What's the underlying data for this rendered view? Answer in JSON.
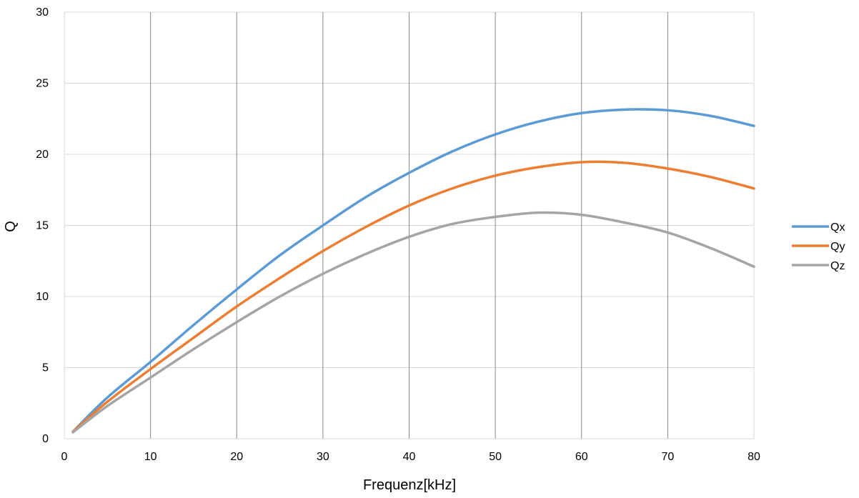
{
  "chart_data": {
    "type": "line",
    "title": "",
    "xlabel": "Frequenz[kHz]",
    "ylabel": "Q",
    "xlim": [
      0,
      80
    ],
    "ylim": [
      0,
      30
    ],
    "x_ticks": [
      0,
      10,
      20,
      30,
      40,
      50,
      60,
      70,
      80
    ],
    "y_ticks": [
      0,
      5,
      10,
      15,
      20,
      25,
      30
    ],
    "grid": "on",
    "legend_position": "right",
    "x": [
      1,
      5,
      10,
      15,
      20,
      25,
      30,
      35,
      40,
      45,
      50,
      55,
      60,
      65,
      70,
      75,
      80
    ],
    "series": [
      {
        "name": "Qx",
        "color": "#5b9bd5",
        "values": [
          0.5,
          2.9,
          5.4,
          8.0,
          10.5,
          12.9,
          15.0,
          17.0,
          18.7,
          20.2,
          21.4,
          22.3,
          22.9,
          23.15,
          23.1,
          22.7,
          22.0
        ]
      },
      {
        "name": "Qy",
        "color": "#ed7d31",
        "values": [
          0.5,
          2.6,
          4.9,
          7.1,
          9.3,
          11.3,
          13.2,
          14.9,
          16.4,
          17.6,
          18.5,
          19.1,
          19.45,
          19.4,
          19.0,
          18.4,
          17.6
        ]
      },
      {
        "name": "Qz",
        "color": "#a5a5a5",
        "values": [
          0.45,
          2.3,
          4.3,
          6.3,
          8.2,
          10.0,
          11.6,
          13.0,
          14.2,
          15.1,
          15.6,
          15.9,
          15.75,
          15.2,
          14.5,
          13.4,
          12.1
        ]
      }
    ]
  }
}
